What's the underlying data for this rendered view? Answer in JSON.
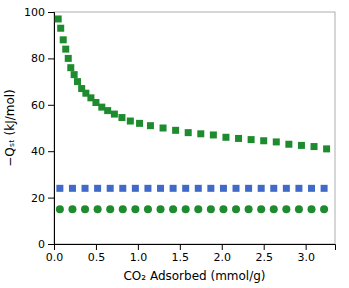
{
  "chart_data": {
    "type": "scatter",
    "xlabel": "CO₂ Adsorbed (mmol/g)",
    "ylabel": "−Qₛₜ (kJ/mol)",
    "xlim": [
      0.0,
      3.35
    ],
    "ylim": [
      0,
      100
    ],
    "xticks": [
      {
        "value": 0.0,
        "label": "0.0"
      },
      0.5,
      {
        "value": 1.0,
        "label": "1.0"
      },
      1.5,
      {
        "value": 2.0,
        "label": "2.0"
      },
      2.5,
      {
        "value": 3.0,
        "label": "3.0"
      }
    ],
    "yticks": [
      0,
      20,
      40,
      60,
      80,
      100
    ],
    "series": [
      {
        "color": "#1e8c2e",
        "marker": "square",
        "x": [
          0.05,
          0.08,
          0.11,
          0.14,
          0.17,
          0.2,
          0.24,
          0.28,
          0.33,
          0.38,
          0.44,
          0.5,
          0.57,
          0.64,
          0.72,
          0.81,
          0.91,
          1.02,
          1.15,
          1.3,
          1.45,
          1.6,
          1.75,
          1.9,
          2.05,
          2.2,
          2.35,
          2.5,
          2.65,
          2.8,
          2.95,
          3.1,
          3.25
        ],
        "values": [
          97,
          93,
          88,
          84,
          80,
          76,
          73,
          70,
          67,
          65,
          63,
          61,
          59,
          57.5,
          56,
          54.5,
          53,
          52,
          51,
          50,
          49,
          48,
          47.5,
          47,
          46,
          45.5,
          45,
          44.5,
          44,
          43,
          42.5,
          42,
          41
        ]
      },
      {
        "color": "#4169c8",
        "marker": "square",
        "x": [
          0.07,
          0.22,
          0.37,
          0.52,
          0.67,
          0.82,
          0.97,
          1.12,
          1.27,
          1.42,
          1.57,
          1.72,
          1.87,
          2.02,
          2.17,
          2.32,
          2.47,
          2.62,
          2.77,
          2.92,
          3.07,
          3.22
        ],
        "values": [
          24,
          24,
          24,
          24,
          24,
          24,
          24,
          24,
          24,
          24,
          24,
          24,
          24,
          24,
          24,
          24,
          24,
          24,
          24,
          24,
          24,
          24
        ]
      },
      {
        "color": "#1e8c2e",
        "marker": "circle",
        "x": [
          0.07,
          0.22,
          0.37,
          0.52,
          0.67,
          0.82,
          0.97,
          1.12,
          1.27,
          1.42,
          1.57,
          1.72,
          1.87,
          2.02,
          2.17,
          2.32,
          2.47,
          2.62,
          2.77,
          2.92,
          3.07,
          3.22
        ],
        "values": [
          15,
          15,
          15,
          15,
          15,
          15,
          15,
          15,
          15,
          15,
          15,
          15,
          15,
          15,
          15,
          15,
          15,
          15,
          15,
          15,
          15,
          15
        ]
      }
    ]
  }
}
